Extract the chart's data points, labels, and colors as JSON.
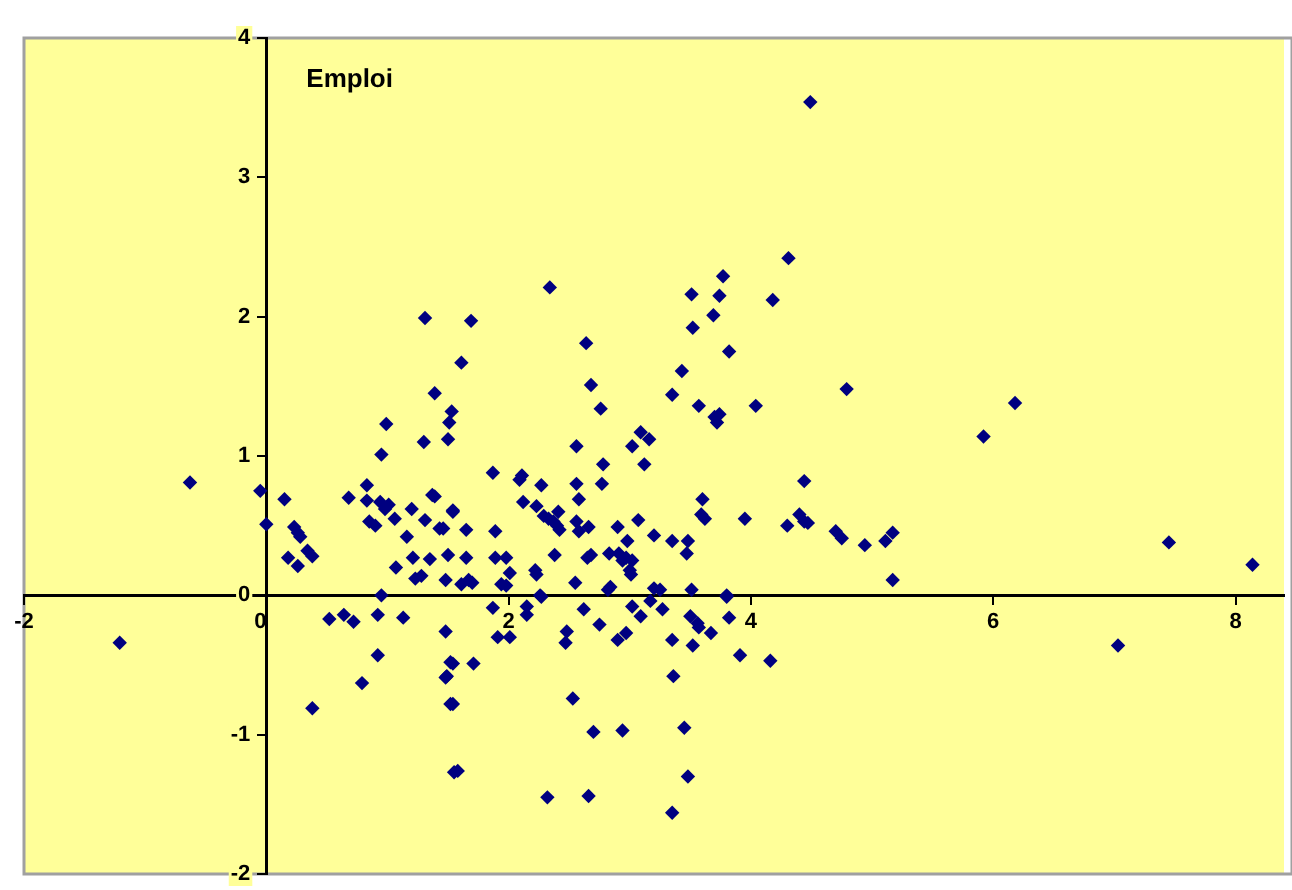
{
  "chart_data": {
    "type": "scatter",
    "title": "Emploi",
    "xlim": [
      -2,
      8.4
    ],
    "ylim": [
      -2,
      4
    ],
    "xticks": [
      -2,
      0,
      2,
      4,
      6,
      8
    ],
    "yticks": [
      -2,
      -1,
      0,
      1,
      2,
      3,
      4
    ],
    "grid": false,
    "legend": false,
    "marker": "diamond",
    "series": [
      {
        "color": "#000080",
        "x": [
          -1.21,
          -0.63,
          -0.05,
          0,
          0.15,
          0.23,
          0.26,
          0.28,
          0.18,
          0.26,
          0.34,
          0.38,
          0.38,
          0.52,
          0.64,
          0.72,
          0.68,
          0.83,
          0.83,
          0.85,
          0.9,
          0.95,
          0.99,
          0.94,
          0.98,
          1.01,
          1.06,
          1.07,
          0.95,
          0.92,
          0.79,
          0.92,
          1.13,
          1.16,
          1.2,
          1.31,
          1.39,
          1.3,
          1.37,
          1.31,
          1.21,
          1.23,
          1.28,
          1.35,
          1.43,
          1.48,
          1.5,
          1.48,
          1.48,
          1.52,
          1.52,
          1.5,
          1.53,
          1.55,
          1.69,
          1.61,
          1.51,
          1.65,
          1.65,
          1.67,
          1.54,
          1.46,
          1.54,
          2.34,
          2.64,
          2.68,
          2.76,
          2.56,
          3.02,
          3.09,
          3.16,
          3.12,
          2.78,
          2.77,
          2.56,
          2.58,
          2.27,
          2.09,
          2.11,
          1.87,
          1.39,
          1.61,
          1.7,
          1.89,
          1.89,
          1.98,
          1.94,
          1.98,
          2.01,
          2.12,
          2.23,
          2.29,
          2.33,
          2.37,
          2.4,
          2.42,
          2.41,
          2.56,
          2.58,
          2.66,
          2.38,
          2.22,
          2.23,
          2.55,
          2.65,
          2.68,
          2.83,
          2.9,
          2.98,
          2.91,
          2.97,
          3.02,
          2.94,
          3.0,
          3.01,
          3.07,
          3.2,
          3.35,
          3.48,
          3.47,
          3.35,
          3.43,
          3.51,
          3.52,
          3.74,
          3.77,
          3.69,
          3.82,
          3.57,
          3.7,
          3.74,
          3.72,
          4.04,
          4.18,
          4.31,
          3.6,
          3.62,
          3.59,
          3.95,
          4.3,
          4.4,
          4.44,
          4.44,
          2.84,
          2.82,
          3.2,
          3.25,
          3.51,
          3.8,
          2.26,
          1.87,
          2.15,
          2.15,
          2.27,
          2.62,
          3.02,
          3.09,
          3.27,
          3.17,
          3.5,
          3.56,
          3.57,
          3.82,
          3.67,
          3.8,
          1.91,
          2.01,
          2.48,
          2.47,
          2.75,
          2.9,
          2.97,
          3.35,
          3.52,
          3.91,
          4.16,
          1.54,
          1.49,
          1.71,
          1.54,
          3.36,
          2.53,
          2.7,
          2.94,
          3.45,
          1.58,
          3.48,
          2.32,
          2.66,
          3.35,
          4.49,
          4.79,
          6.18,
          5.92,
          4.47,
          4.7,
          4.75,
          4.94,
          5.11,
          5.17,
          5.17,
          7.45,
          8.14,
          7.03
        ],
        "values": [
          -0.34,
          0.81,
          0.75,
          0.51,
          0.69,
          0.49,
          0.45,
          0.42,
          0.27,
          0.21,
          0.32,
          0.28,
          -0.81,
          -0.17,
          -0.14,
          -0.19,
          0.7,
          0.79,
          0.68,
          0.53,
          0.5,
          1.01,
          1.23,
          0.67,
          0.62,
          0.65,
          0.55,
          0.2,
          0,
          -0.14,
          -0.63,
          -0.43,
          -0.16,
          0.42,
          0.62,
          1.99,
          1.45,
          1.1,
          0.72,
          0.54,
          0.27,
          0.12,
          0.14,
          0.26,
          0.48,
          0.11,
          0.29,
          -0.26,
          -0.59,
          -0.78,
          -0.48,
          1.12,
          1.32,
          -1.27,
          1.97,
          1.67,
          1.24,
          0.47,
          0.27,
          0.11,
          0.61,
          0.48,
          0.6,
          2.21,
          1.81,
          1.51,
          1.34,
          1.07,
          1.07,
          1.17,
          1.12,
          0.94,
          0.94,
          0.8,
          0.8,
          0.69,
          0.79,
          0.83,
          0.86,
          0.88,
          0.71,
          0.08,
          0.09,
          0.46,
          0.27,
          0.27,
          0.08,
          0.07,
          0.16,
          0.67,
          0.64,
          0.57,
          0.55,
          0.53,
          0.5,
          0.47,
          0.6,
          0.53,
          0.46,
          0.49,
          0.29,
          0.18,
          0.15,
          0.09,
          0.27,
          0.29,
          0.3,
          0.49,
          0.39,
          0.3,
          0.27,
          0.25,
          0.25,
          0.18,
          0.15,
          0.54,
          0.43,
          0.39,
          0.39,
          0.3,
          1.44,
          1.61,
          2.16,
          1.92,
          2.15,
          2.29,
          2.01,
          1.75,
          1.36,
          1.28,
          1.3,
          1.24,
          1.36,
          2.12,
          2.42,
          0.69,
          0.55,
          0.58,
          0.55,
          0.5,
          0.58,
          0.53,
          0.82,
          0.06,
          0.04,
          0.05,
          0.04,
          0.04,
          0,
          0,
          -0.09,
          -0.08,
          -0.14,
          -0.01,
          -0.1,
          -0.08,
          -0.15,
          -0.1,
          -0.04,
          -0.15,
          -0.2,
          -0.23,
          -0.16,
          -0.27,
          -0.01,
          -0.3,
          -0.3,
          -0.26,
          -0.34,
          -0.21,
          -0.32,
          -0.27,
          -0.32,
          -0.36,
          -0.43,
          -0.47,
          -0.49,
          -0.58,
          -0.49,
          -0.78,
          -0.58,
          -0.74,
          -0.98,
          -0.97,
          -0.95,
          -1.26,
          -1.3,
          -1.45,
          -1.44,
          -1.56,
          3.54,
          1.48,
          1.38,
          1.14,
          0.52,
          0.46,
          0.41,
          0.36,
          0.39,
          0.45,
          0.11,
          0.38,
          0.22,
          -0.36
        ]
      }
    ]
  }
}
